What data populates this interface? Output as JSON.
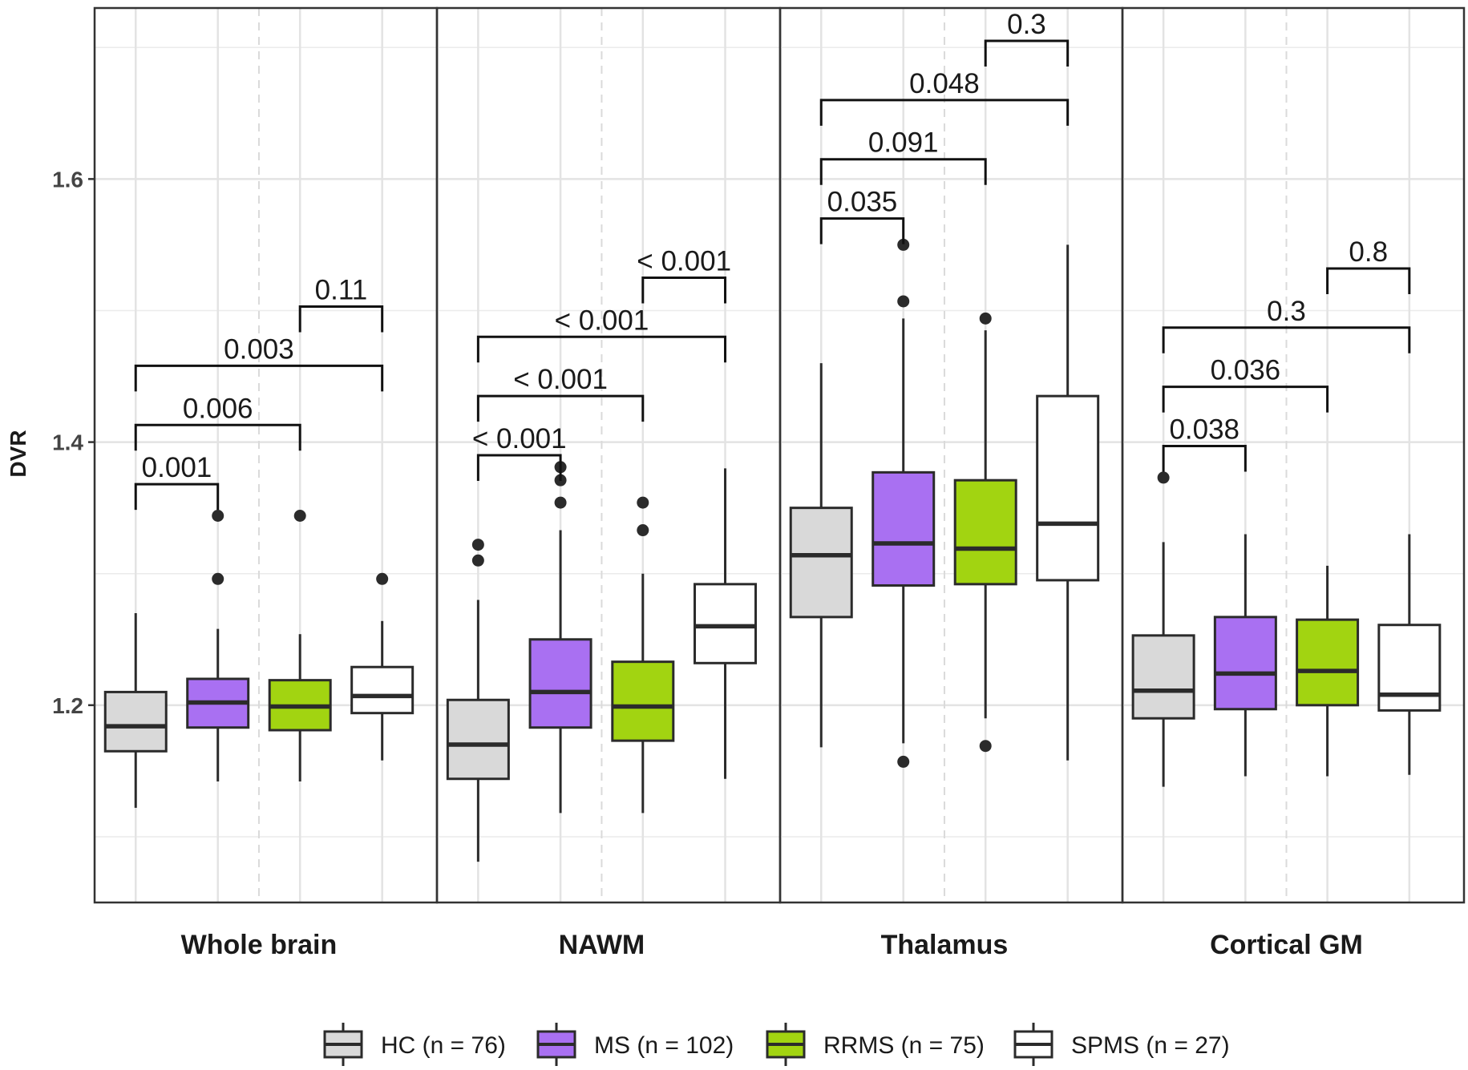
{
  "chart_data": {
    "type": "boxplot",
    "ylabel": "DVR",
    "ylim": [
      1.05,
      1.73
    ],
    "yticks": [
      "1.2",
      "1.4",
      "1.6"
    ],
    "grid": true,
    "legend_position": "bottom",
    "groups": [
      {
        "key": "HC",
        "label": "HC (n = 76)",
        "color": "#d9d9d9"
      },
      {
        "key": "MS",
        "label": "MS (n = 102)",
        "color": "#a970f2"
      },
      {
        "key": "RRMS",
        "label": "RRMS (n = 75)",
        "color": "#a2d411"
      },
      {
        "key": "SPMS",
        "label": "SPMS (n = 27)",
        "color": "#ffffff"
      }
    ],
    "facets": [
      {
        "name": "Whole brain",
        "boxes": [
          {
            "group": "HC",
            "whisker_low": 1.122,
            "q1": 1.165,
            "median": 1.184,
            "q3": 1.21,
            "whisker_high": 1.27,
            "outliers": []
          },
          {
            "group": "MS",
            "whisker_low": 1.142,
            "q1": 1.183,
            "median": 1.202,
            "q3": 1.22,
            "whisker_high": 1.258,
            "outliers": [
              1.296,
              1.344
            ]
          },
          {
            "group": "RRMS",
            "whisker_low": 1.142,
            "q1": 1.181,
            "median": 1.199,
            "q3": 1.219,
            "whisker_high": 1.254,
            "outliers": [
              1.344
            ]
          },
          {
            "group": "SPMS",
            "whisker_low": 1.158,
            "q1": 1.194,
            "median": 1.207,
            "q3": 1.229,
            "whisker_high": 1.264,
            "outliers": [
              1.296
            ]
          }
        ],
        "comparisons": [
          {
            "from": "HC",
            "to": "MS",
            "label": "0.001",
            "y": 1.368
          },
          {
            "from": "HC",
            "to": "RRMS",
            "label": "0.006",
            "y": 1.413
          },
          {
            "from": "HC",
            "to": "SPMS",
            "label": "0.003",
            "y": 1.458
          },
          {
            "from": "RRMS",
            "to": "SPMS",
            "label": "0.11",
            "y": 1.503
          }
        ]
      },
      {
        "name": "NAWM",
        "boxes": [
          {
            "group": "HC",
            "whisker_low": 1.081,
            "q1": 1.144,
            "median": 1.17,
            "q3": 1.204,
            "whisker_high": 1.28,
            "outliers": [
              1.31,
              1.322
            ]
          },
          {
            "group": "MS",
            "whisker_low": 1.118,
            "q1": 1.183,
            "median": 1.21,
            "q3": 1.25,
            "whisker_high": 1.333,
            "outliers": [
              1.354,
              1.371,
              1.381
            ]
          },
          {
            "group": "RRMS",
            "whisker_low": 1.118,
            "q1": 1.173,
            "median": 1.199,
            "q3": 1.233,
            "whisker_high": 1.3,
            "outliers": [
              1.333,
              1.354
            ]
          },
          {
            "group": "SPMS",
            "whisker_low": 1.144,
            "q1": 1.232,
            "median": 1.26,
            "q3": 1.292,
            "whisker_high": 1.38,
            "outliers": []
          }
        ],
        "comparisons": [
          {
            "from": "HC",
            "to": "MS",
            "label": "< 0.001",
            "y": 1.39
          },
          {
            "from": "HC",
            "to": "RRMS",
            "label": "< 0.001",
            "y": 1.435
          },
          {
            "from": "HC",
            "to": "SPMS",
            "label": "< 0.001",
            "y": 1.48
          },
          {
            "from": "RRMS",
            "to": "SPMS",
            "label": "< 0.001",
            "y": 1.525
          }
        ]
      },
      {
        "name": "Thalamus",
        "boxes": [
          {
            "group": "HC",
            "whisker_low": 1.168,
            "q1": 1.267,
            "median": 1.314,
            "q3": 1.35,
            "whisker_high": 1.46,
            "outliers": []
          },
          {
            "group": "MS",
            "whisker_low": 1.171,
            "q1": 1.291,
            "median": 1.323,
            "q3": 1.377,
            "whisker_high": 1.494,
            "outliers": [
              1.157,
              1.507,
              1.55
            ]
          },
          {
            "group": "RRMS",
            "whisker_low": 1.19,
            "q1": 1.292,
            "median": 1.319,
            "q3": 1.371,
            "whisker_high": 1.485,
            "outliers": [
              1.169,
              1.494
            ]
          },
          {
            "group": "SPMS",
            "whisker_low": 1.158,
            "q1": 1.295,
            "median": 1.338,
            "q3": 1.435,
            "whisker_high": 1.55,
            "outliers": []
          }
        ],
        "comparisons": [
          {
            "from": "HC",
            "to": "MS",
            "label": "0.035",
            "y": 1.57
          },
          {
            "from": "HC",
            "to": "RRMS",
            "label": "0.091",
            "y": 1.615
          },
          {
            "from": "HC",
            "to": "SPMS",
            "label": "0.048",
            "y": 1.66
          },
          {
            "from": "RRMS",
            "to": "SPMS",
            "label": "0.3",
            "y": 1.705
          }
        ]
      },
      {
        "name": "Cortical GM",
        "boxes": [
          {
            "group": "HC",
            "whisker_low": 1.138,
            "q1": 1.19,
            "median": 1.211,
            "q3": 1.253,
            "whisker_high": 1.324,
            "outliers": [
              1.373
            ]
          },
          {
            "group": "MS",
            "whisker_low": 1.146,
            "q1": 1.197,
            "median": 1.224,
            "q3": 1.267,
            "whisker_high": 1.33,
            "outliers": []
          },
          {
            "group": "RRMS",
            "whisker_low": 1.146,
            "q1": 1.2,
            "median": 1.226,
            "q3": 1.265,
            "whisker_high": 1.306,
            "outliers": []
          },
          {
            "group": "SPMS",
            "whisker_low": 1.147,
            "q1": 1.196,
            "median": 1.208,
            "q3": 1.261,
            "whisker_high": 1.33,
            "outliers": []
          }
        ],
        "comparisons": [
          {
            "from": "HC",
            "to": "MS",
            "label": "0.038",
            "y": 1.397
          },
          {
            "from": "HC",
            "to": "RRMS",
            "label": "0.036",
            "y": 1.442
          },
          {
            "from": "HC",
            "to": "SPMS",
            "label": "0.3",
            "y": 1.487
          },
          {
            "from": "RRMS",
            "to": "SPMS",
            "label": "0.8",
            "y": 1.532
          }
        ]
      }
    ]
  }
}
